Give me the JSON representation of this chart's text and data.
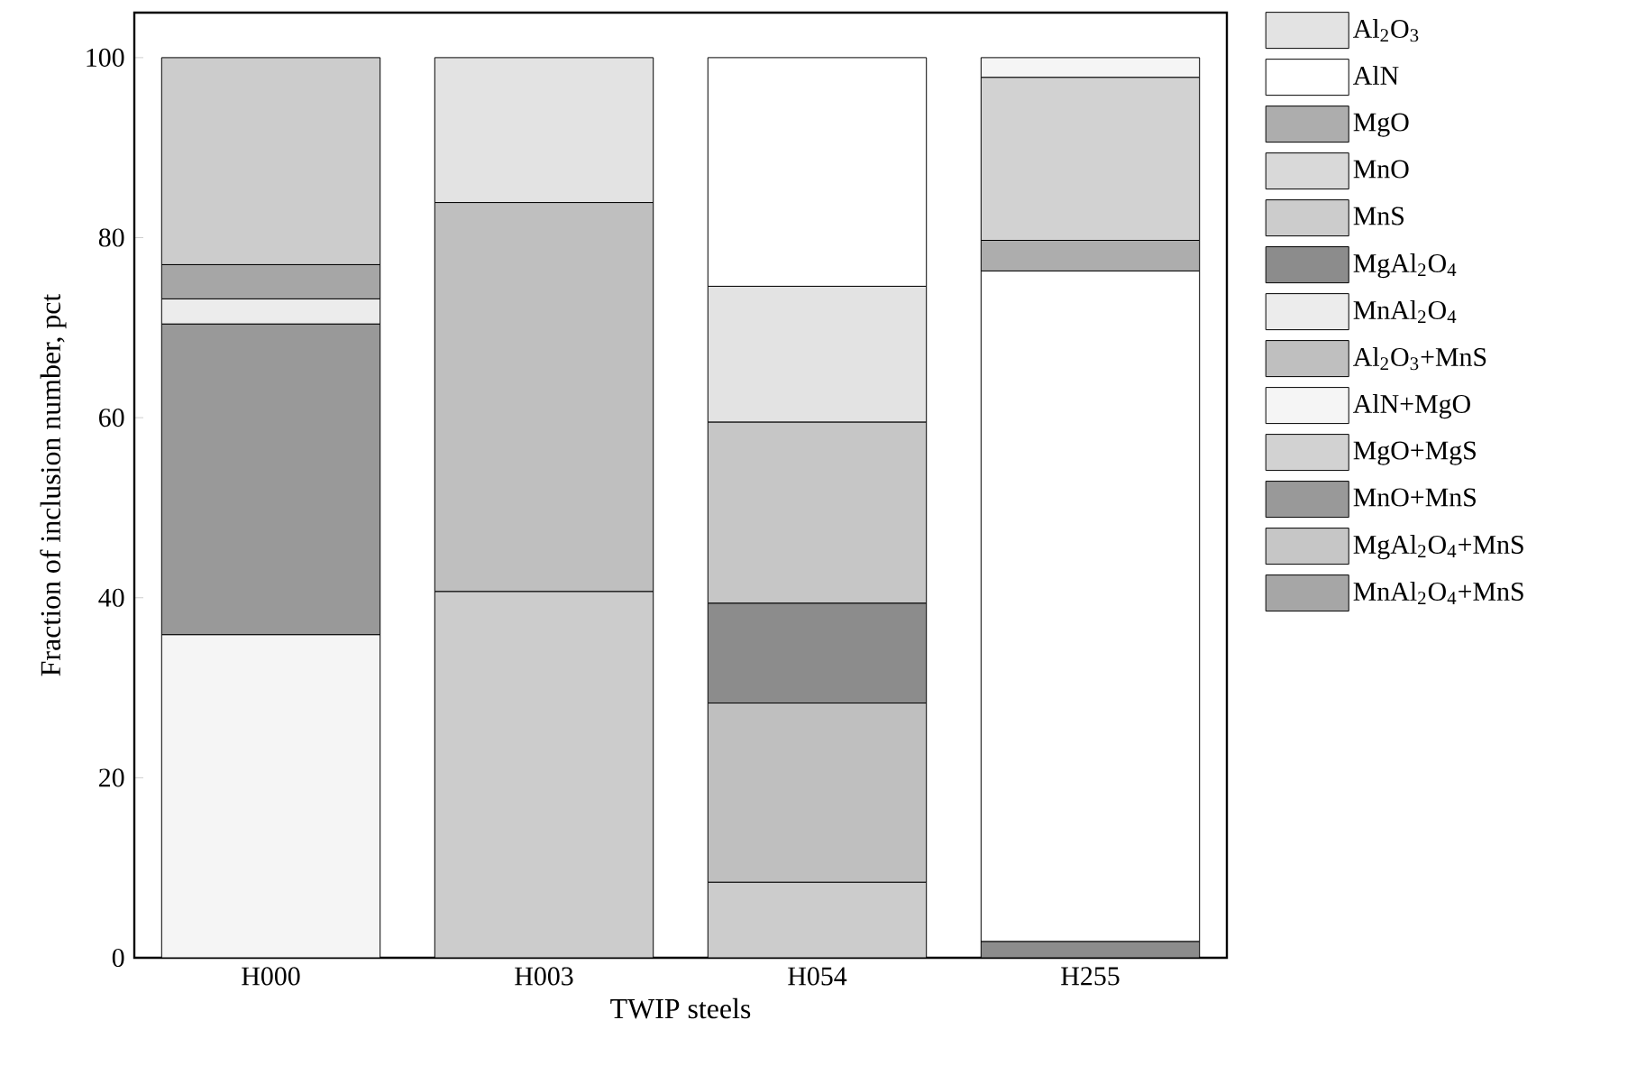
{
  "chart_data": {
    "type": "bar",
    "xlabel": "TWIP steels",
    "ylabel": "Fraction of inclusion number, pct",
    "categories": [
      "H000",
      "H003",
      "H054",
      "H255"
    ],
    "ylim": [
      0,
      105
    ],
    "yticks": [
      0,
      20,
      40,
      60,
      80,
      100
    ],
    "legend": "right",
    "series": [
      {
        "name": "Al$_{2}$O$_{3}$",
        "color": "#e3e3e3",
        "values": [
          null,
          16.1,
          15.1,
          null
        ],
        "base": [
          null,
          83.9,
          59.5,
          null
        ]
      },
      {
        "name": "AlN",
        "color": "#ffffff",
        "values": [
          null,
          null,
          25.4,
          74.5
        ],
        "base": [
          null,
          null,
          74.6,
          1.8
        ]
      },
      {
        "name": "MgO",
        "color": "#adadad",
        "values": [
          null,
          null,
          null,
          3.4
        ],
        "base": [
          null,
          null,
          null,
          76.3
        ]
      },
      {
        "name": "MnO",
        "color": "#d9d9d9",
        "values": [
          null,
          null,
          null,
          null
        ],
        "base": [
          null,
          null,
          null,
          null
        ]
      },
      {
        "name": "MnS",
        "color": "#cccccc",
        "values": [
          23.0,
          40.7,
          8.4,
          null
        ],
        "base": [
          77.0,
          0,
          0,
          null
        ]
      },
      {
        "name": "MgAl$_{2}$O$_{4}$",
        "color": "#8c8c8c",
        "values": [
          null,
          null,
          11.1,
          1.8
        ],
        "base": [
          null,
          null,
          28.3,
          0
        ]
      },
      {
        "name": "MnAl$_{2}$O$_{4}$",
        "color": "#ececec",
        "values": [
          2.8,
          null,
          null,
          null
        ],
        "base": [
          70.4,
          null,
          null,
          null
        ]
      },
      {
        "name": "Al$_{2}$O$_{3}$+MnS",
        "color": "#bfbfbf",
        "values": [
          null,
          43.2,
          19.9,
          null
        ],
        "base": [
          null,
          40.7,
          8.4,
          null
        ]
      },
      {
        "name": "AlN+MgO",
        "color": "#f5f5f5",
        "values": [
          35.9,
          null,
          null,
          2.2
        ],
        "base": [
          0,
          null,
          null,
          97.8
        ]
      },
      {
        "name": "MgO+MgS",
        "color": "#d2d2d2",
        "values": [
          null,
          null,
          null,
          18.1
        ],
        "base": [
          null,
          null,
          null,
          79.7
        ]
      },
      {
        "name": "MnO+MnS",
        "color": "#999999",
        "values": [
          34.5,
          null,
          null,
          null
        ],
        "base": [
          35.9,
          null,
          null,
          null
        ]
      },
      {
        "name": "MgAl$_{2}$O$_{4}$+MnS",
        "color": "#c6c6c6",
        "values": [
          null,
          null,
          20.1,
          null
        ],
        "base": [
          null,
          null,
          39.4,
          null
        ]
      },
      {
        "name": "MnAl$_{2}$O$_{4}$+MnS",
        "color": "#a6a6a6",
        "values": [
          3.8,
          null,
          null,
          null
        ],
        "base": [
          73.2,
          null,
          null,
          null
        ]
      }
    ]
  }
}
